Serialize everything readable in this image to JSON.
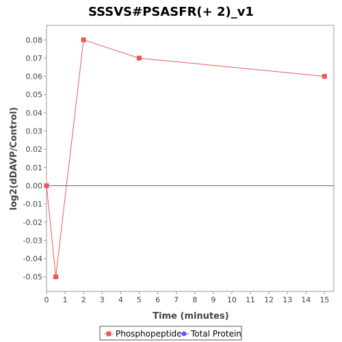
{
  "chart_data": {
    "type": "line",
    "title": "SSSVS#PSASFR(+ 2)_v1",
    "xlabel": "Time (minutes)",
    "ylabel": "log2(dDAVP/Control)",
    "xlim": [
      0,
      15.5
    ],
    "ylim": [
      -0.058,
      0.088
    ],
    "x_ticks": [
      0,
      1,
      2,
      3,
      4,
      5,
      6,
      7,
      8,
      9,
      10,
      11,
      12,
      13,
      14,
      15
    ],
    "y_ticks": [
      -0.05,
      -0.04,
      -0.03,
      -0.02,
      -0.01,
      0.0,
      0.01,
      0.02,
      0.03,
      0.04,
      0.05,
      0.06,
      0.07,
      0.08
    ],
    "y_tick_labels": [
      "-0.05",
      "-0.04",
      "-0.03",
      "-0.02",
      "-0.01",
      "0.00",
      "0.01",
      "0.02",
      "0.03",
      "0.04",
      "0.05",
      "0.06",
      "0.07",
      "0.08"
    ],
    "zero_line": true,
    "grid": false,
    "legend_position": "bottom",
    "series": [
      {
        "name": "Phosphopeptide",
        "color": "#e8585c",
        "marker": "square",
        "x": [
          0,
          0.5,
          2,
          5,
          15
        ],
        "y": [
          0.0,
          -0.05,
          0.08,
          0.07,
          0.06
        ]
      },
      {
        "name": "Total Protein",
        "color": "#5a5aee",
        "marker": "circle",
        "x": [],
        "y": []
      }
    ]
  }
}
